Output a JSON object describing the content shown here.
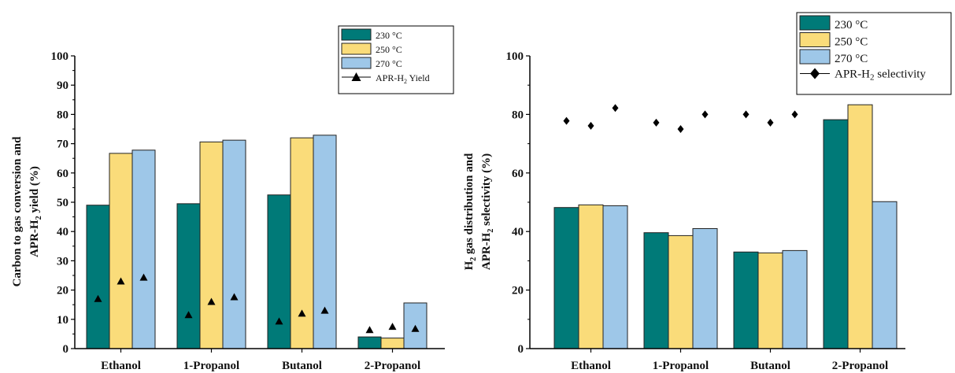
{
  "chart_data": [
    {
      "type": "bar",
      "categories": [
        "Ethanol",
        "1-Propanol",
        "Butanol",
        "2-Propanol"
      ],
      "ylabel_line1": "Carbon to gas conversion and",
      "ylabel_line2_a": "APR-H",
      "ylabel_line2_sub": "2",
      "ylabel_line2_b": " yield (%)",
      "ylim": [
        0,
        100
      ],
      "yticks": [
        "0",
        "10",
        "20",
        "30",
        "40",
        "50",
        "60",
        "70",
        "80",
        "90",
        "100"
      ],
      "series": [
        {
          "name": "230 °C",
          "color": "#007a78",
          "values": [
            49,
            49.5,
            52.5,
            4
          ]
        },
        {
          "name": "250 °C",
          "color": "#fadc7a",
          "values": [
            66.7,
            70.6,
            72,
            3.6
          ]
        },
        {
          "name": "270 °C",
          "color": "#9ec7e8",
          "values": [
            67.8,
            71.2,
            72.9,
            15.6
          ]
        }
      ],
      "markers": {
        "name_a": "APR-H",
        "name_sub": "2",
        "name_b": " Yield",
        "symbol": "triangle",
        "values": [
          [
            17,
            23,
            24.3
          ],
          [
            11.5,
            16,
            17.6
          ],
          [
            9.3,
            12,
            13
          ],
          [
            6.4,
            7.5,
            6.8
          ]
        ]
      }
    },
    {
      "type": "bar",
      "categories": [
        "Ethanol",
        "1-Propanol",
        "Butanol",
        "2-Propanol"
      ],
      "ylabel_line1_a": "H",
      "ylabel_line1_sub": "2",
      "ylabel_line1_b": " gas distribution and",
      "ylabel_line2_a": "APR-H",
      "ylabel_line2_sub": "2",
      "ylabel_line2_b": " selectivity (%)",
      "ylim": [
        0,
        100
      ],
      "yticks": [
        "0",
        "20",
        "40",
        "60",
        "80",
        "100"
      ],
      "series": [
        {
          "name": "230 °C",
          "color": "#007a78",
          "values": [
            48.2,
            39.6,
            33,
            78.2
          ]
        },
        {
          "name": "250 °C",
          "color": "#fadc7a",
          "values": [
            49.1,
            38.6,
            32.7,
            83.3
          ]
        },
        {
          "name": "270 °C",
          "color": "#9ec7e8",
          "values": [
            48.8,
            41,
            33.5,
            50.2
          ]
        }
      ],
      "markers": {
        "name_a": "APR-H",
        "name_sub": "2",
        "name_b": " selectivity",
        "symbol": "diamond",
        "values": [
          [
            77.8,
            76.1,
            82.2
          ],
          [
            77.2,
            75,
            80
          ],
          [
            80,
            77.2,
            80
          ],
          [
            null,
            null,
            null
          ]
        ]
      }
    }
  ]
}
